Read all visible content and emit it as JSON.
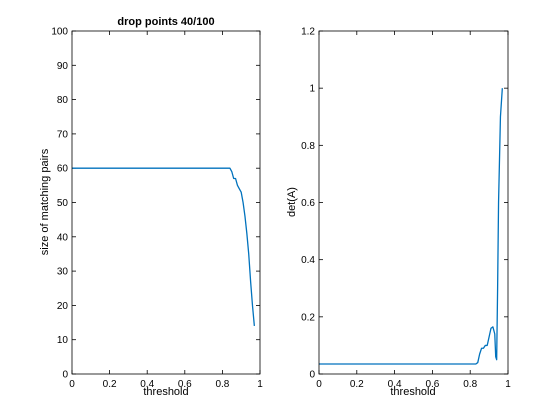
{
  "chart_data": [
    {
      "type": "line",
      "title": "drop points 40/100",
      "xlabel": "threshold",
      "ylabel": "size of matching pairs",
      "xlim": [
        0,
        1
      ],
      "ylim": [
        0,
        100
      ],
      "xticks": [
        "0",
        "0.2",
        "0.4",
        "0.6",
        "0.8",
        "1"
      ],
      "yticks": [
        "0",
        "10",
        "20",
        "30",
        "40",
        "50",
        "60",
        "70",
        "80",
        "90",
        "100"
      ],
      "grid": false,
      "line_color": "#0072BD",
      "series": [
        {
          "x": [
            0,
            0.1,
            0.2,
            0.3,
            0.4,
            0.5,
            0.6,
            0.7,
            0.8,
            0.84,
            0.85,
            0.86,
            0.87,
            0.88,
            0.89,
            0.9,
            0.91,
            0.92,
            0.93,
            0.94,
            0.95,
            0.96,
            0.97
          ],
          "y": [
            60,
            60,
            60,
            60,
            60,
            60,
            60,
            60,
            60,
            60,
            59,
            57,
            57,
            55,
            54,
            53,
            50,
            46,
            41,
            35,
            27,
            20,
            14
          ]
        }
      ]
    },
    {
      "type": "line",
      "title": "",
      "xlabel": "threshold",
      "ylabel": "det(A)",
      "xlim": [
        0,
        1
      ],
      "ylim": [
        0,
        1.2
      ],
      "xticks": [
        "0",
        "0.2",
        "0.4",
        "0.6",
        "0.8",
        "1"
      ],
      "yticks": [
        "0",
        "0.2",
        "0.4",
        "0.6",
        "0.8",
        "1",
        "1.2"
      ],
      "grid": false,
      "line_color": "#0072BD",
      "series": [
        {
          "x": [
            0,
            0.1,
            0.2,
            0.3,
            0.4,
            0.5,
            0.6,
            0.7,
            0.8,
            0.83,
            0.84,
            0.85,
            0.86,
            0.87,
            0.88,
            0.89,
            0.9,
            0.91,
            0.92,
            0.93,
            0.935,
            0.94,
            0.945,
            0.95,
            0.955,
            0.96,
            0.97
          ],
          "y": [
            0.035,
            0.035,
            0.035,
            0.035,
            0.035,
            0.035,
            0.035,
            0.035,
            0.035,
            0.035,
            0.04,
            0.07,
            0.09,
            0.09,
            0.1,
            0.1,
            0.13,
            0.16,
            0.165,
            0.14,
            0.06,
            0.05,
            0.3,
            0.6,
            0.75,
            0.9,
            1.0
          ]
        }
      ]
    }
  ]
}
